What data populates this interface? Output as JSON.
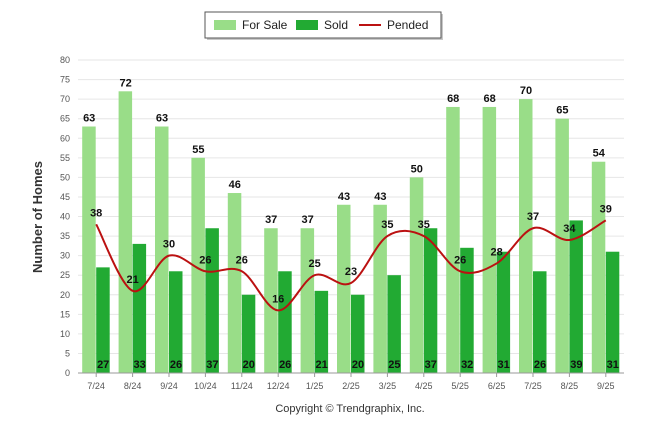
{
  "chart_data": {
    "type": "bar",
    "title": "",
    "xlabel": "",
    "ylabel": "Number of Homes",
    "ylim": [
      0,
      80
    ],
    "ytick_step": 5,
    "categories": [
      "7/24",
      "8/24",
      "9/24",
      "10/24",
      "11/24",
      "12/24",
      "1/25",
      "2/25",
      "3/25",
      "4/25",
      "5/25",
      "6/25",
      "7/25",
      "8/25",
      "9/25"
    ],
    "series": [
      {
        "name": "For Sale",
        "kind": "bar",
        "color": "#99dd88",
        "values": [
          63,
          72,
          63,
          55,
          46,
          37,
          37,
          43,
          43,
          50,
          68,
          68,
          70,
          65,
          54
        ]
      },
      {
        "name": "Sold",
        "kind": "bar",
        "color": "#22aa33",
        "values": [
          27,
          33,
          26,
          37,
          20,
          26,
          21,
          20,
          25,
          37,
          32,
          31,
          26,
          39,
          31
        ]
      },
      {
        "name": "Pended",
        "kind": "line",
        "color": "#bb1111",
        "values": [
          38,
          21,
          30,
          26,
          26,
          16,
          25,
          23,
          35,
          35,
          26,
          28,
          37,
          34,
          39
        ]
      }
    ],
    "legend_position": "top-center",
    "footer": "Copyright © Trendgraphix, Inc."
  }
}
